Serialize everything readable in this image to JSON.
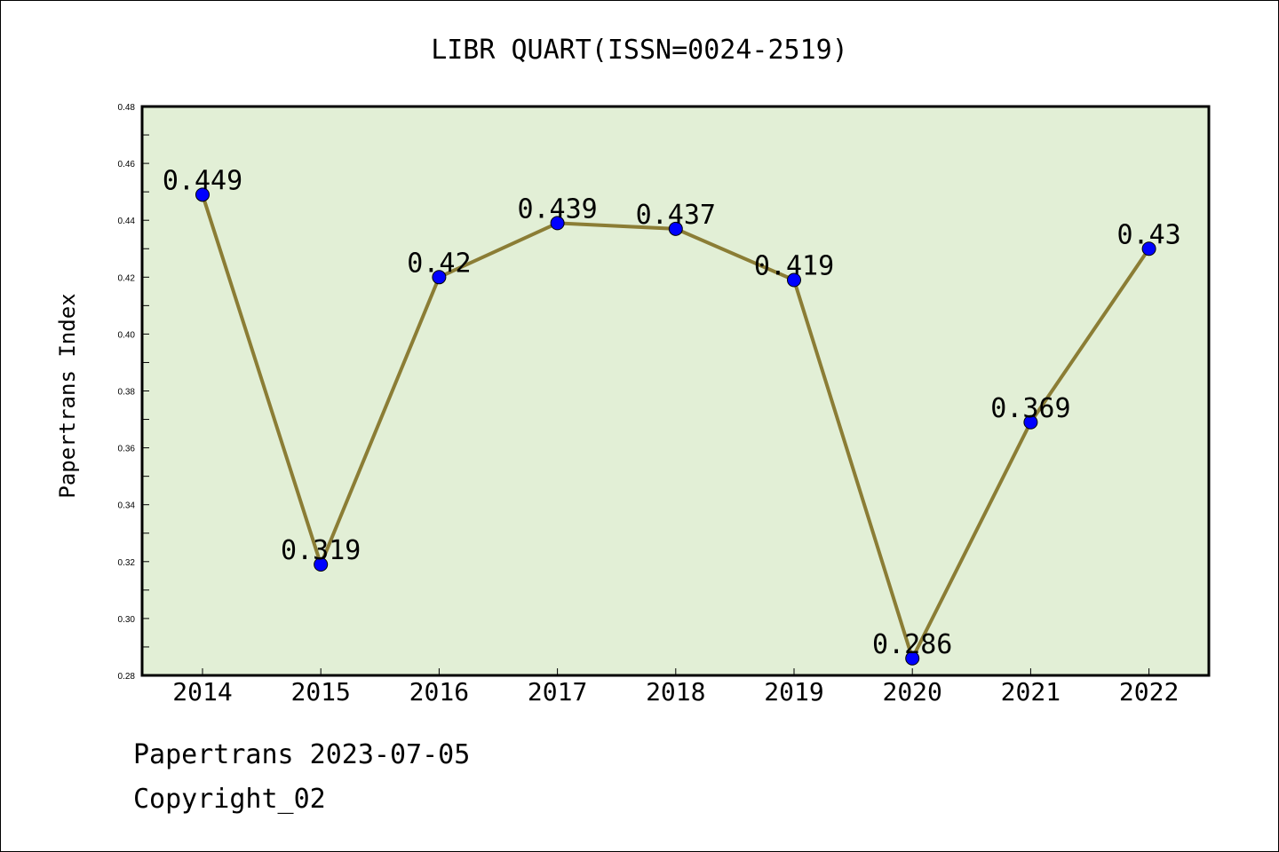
{
  "footer": {
    "line1": "Papertrans 2023-07-05",
    "line2": "Copyright_02"
  },
  "colors": {
    "plot_background": "#e2efd6",
    "line": "#8b7d35",
    "marker": "#0000ff"
  },
  "chart_data": {
    "type": "line",
    "title": "LIBR QUART(ISSN=0024-2519)",
    "xlabel": "",
    "ylabel": "Papertrans Index",
    "categories": [
      "2014",
      "2015",
      "2016",
      "2017",
      "2018",
      "2019",
      "2020",
      "2021",
      "2022"
    ],
    "series": [
      {
        "values": [
          0.449,
          0.319,
          0.42,
          0.439,
          0.437,
          0.419,
          0.286,
          0.369,
          0.43
        ],
        "labels": [
          "0.449",
          "0.319",
          "0.42",
          "0.439",
          "0.437",
          "0.419",
          "0.286",
          "0.369",
          "0.43"
        ]
      }
    ],
    "ylim": [
      0.28,
      0.48
    ],
    "yticks": [
      "0.28",
      "0.30",
      "0.32",
      "0.34",
      "0.36",
      "0.38",
      "0.40",
      "0.42",
      "0.44",
      "0.46",
      "0.48"
    ],
    "grid": false,
    "legend": "none"
  }
}
